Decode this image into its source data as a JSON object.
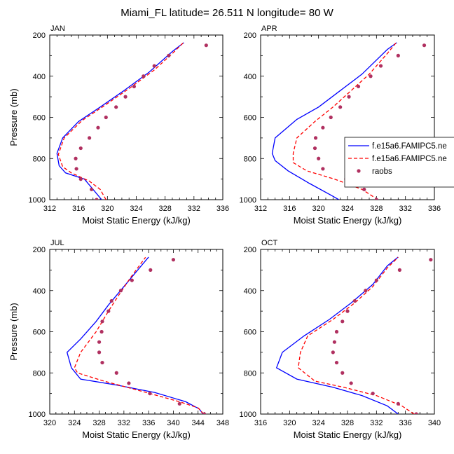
{
  "figure": {
    "title": "Miami_FL  latitude= 26.511 N longitude= 80 W"
  },
  "colors": {
    "model_solid": "#0000ff",
    "model_dashed": "#ff0000",
    "raobs": "#b03060"
  },
  "legend": {
    "items": [
      "f.e15a6.FAMIPC5.ne",
      "f.e15a6.FAMIPC5.ne",
      "raobs"
    ],
    "placement": "right edge of APR panel, clipped by figure"
  },
  "chart_data": [
    {
      "type": "line",
      "panel_label": "JAN",
      "xlabel": "Moist Static Energy (kJ/kg)",
      "ylabel": "Pressure (mb)",
      "xlim": [
        312,
        336
      ],
      "xticks": [
        312,
        316,
        320,
        324,
        328,
        332,
        336
      ],
      "ylim": [
        200,
        1000
      ],
      "yticks": [
        200,
        400,
        600,
        800,
        1000
      ],
      "y_inverted": true,
      "grid": false,
      "series": [
        {
          "style": "solid",
          "points": [
            [
              319.2,
              1000
            ],
            [
              318.0,
              950
            ],
            [
              316.8,
              900
            ],
            [
              314.2,
              870
            ],
            [
              313.3,
              835
            ],
            [
              313.0,
              775
            ],
            [
              313.8,
              700
            ],
            [
              316.0,
              620
            ],
            [
              319.0,
              550
            ],
            [
              322.3,
              470
            ],
            [
              325.8,
              380
            ],
            [
              329.0,
              280
            ],
            [
              330.6,
              237
            ]
          ]
        },
        {
          "style": "dashed",
          "points": [
            [
              319.8,
              1000
            ],
            [
              319.0,
              950
            ],
            [
              317.5,
              910
            ],
            [
              315.0,
              870
            ],
            [
              313.8,
              840
            ],
            [
              313.2,
              780
            ],
            [
              314.0,
              700
            ],
            [
              316.5,
              615
            ],
            [
              319.5,
              545
            ],
            [
              323.0,
              460
            ],
            [
              326.5,
              370
            ],
            [
              329.0,
              290
            ],
            [
              330.5,
              238
            ]
          ]
        },
        {
          "style": "markers",
          "points": [
            [
              318.5,
              1000
            ],
            [
              317.8,
              950
            ],
            [
              316.3,
              900
            ],
            [
              315.7,
              850
            ],
            [
              315.6,
              800
            ],
            [
              316.3,
              750
            ],
            [
              317.5,
              700
            ],
            [
              318.7,
              650
            ],
            [
              319.8,
              600
            ],
            [
              321.2,
              550
            ],
            [
              322.5,
              500
            ],
            [
              323.7,
              450
            ],
            [
              325.0,
              400
            ],
            [
              326.5,
              350
            ],
            [
              328.5,
              300
            ],
            [
              333.7,
              250
            ]
          ]
        }
      ]
    },
    {
      "type": "line",
      "panel_label": "APR",
      "xlabel": "Moist Static Energy (kJ/kg)",
      "ylabel": "",
      "xlim": [
        312,
        336
      ],
      "xticks": [
        312,
        316,
        320,
        324,
        328,
        332,
        336
      ],
      "ylim": [
        200,
        1000
      ],
      "yticks": [
        200,
        400,
        600,
        800,
        1000
      ],
      "y_inverted": true,
      "grid": false,
      "series": [
        {
          "style": "solid",
          "points": [
            [
              322.8,
              1000
            ],
            [
              321.8,
              980
            ],
            [
              318.7,
              920
            ],
            [
              315.8,
              860
            ],
            [
              314.0,
              810
            ],
            [
              313.6,
              775
            ],
            [
              314.0,
              700
            ],
            [
              317.0,
              610
            ],
            [
              320.0,
              550
            ],
            [
              323.0,
              470
            ],
            [
              326.0,
              390
            ],
            [
              329.5,
              270
            ],
            [
              330.8,
              237
            ]
          ]
        },
        {
          "style": "dashed",
          "points": [
            [
              328.2,
              1000
            ],
            [
              326.0,
              950
            ],
            [
              322.2,
              900
            ],
            [
              318.4,
              860
            ],
            [
              316.5,
              820
            ],
            [
              316.5,
              775
            ],
            [
              317.0,
              700
            ],
            [
              319.5,
              620
            ],
            [
              322.0,
              550
            ],
            [
              324.5,
              470
            ],
            [
              327.0,
              390
            ],
            [
              329.5,
              290
            ],
            [
              330.7,
              238
            ]
          ]
        },
        {
          "style": "markers",
          "points": [
            [
              328.0,
              1000
            ],
            [
              326.3,
              950
            ],
            [
              323.8,
              900
            ],
            [
              320.6,
              850
            ],
            [
              320.0,
              800
            ],
            [
              319.5,
              750
            ],
            [
              319.6,
              700
            ],
            [
              320.6,
              650
            ],
            [
              321.7,
              600
            ],
            [
              323.0,
              550
            ],
            [
              324.2,
              500
            ],
            [
              325.5,
              450
            ],
            [
              327.2,
              400
            ],
            [
              328.6,
              350
            ],
            [
              331.0,
              300
            ],
            [
              334.6,
              250
            ]
          ]
        }
      ]
    },
    {
      "type": "line",
      "panel_label": "JUL",
      "xlabel": "Moist Static Energy (kJ/kg)",
      "ylabel": "Pressure (mb)",
      "xlim": [
        320,
        348
      ],
      "xticks": [
        320,
        324,
        328,
        332,
        336,
        340,
        344,
        348
      ],
      "ylim": [
        200,
        1000
      ],
      "yticks": [
        200,
        400,
        600,
        800,
        1000
      ],
      "y_inverted": true,
      "grid": false,
      "series": [
        {
          "style": "solid",
          "points": [
            [
              344.8,
              1000
            ],
            [
              344.2,
              975
            ],
            [
              342.0,
              940
            ],
            [
              337.0,
              895
            ],
            [
              331.0,
              860
            ],
            [
              325.0,
              830
            ],
            [
              323.5,
              775
            ],
            [
              322.8,
              700
            ],
            [
              325.0,
              635
            ],
            [
              327.5,
              550
            ],
            [
              329.5,
              470
            ],
            [
              332.0,
              380
            ],
            [
              336.0,
              237
            ]
          ]
        },
        {
          "style": "dashed",
          "points": [
            [
              344.9,
              1000
            ],
            [
              344.0,
              970
            ],
            [
              341.0,
              940
            ],
            [
              335.0,
              890
            ],
            [
              328.8,
              840
            ],
            [
              324.5,
              800
            ],
            [
              324.0,
              775
            ],
            [
              325.0,
              700
            ],
            [
              327.5,
              600
            ],
            [
              329.5,
              500
            ],
            [
              331.0,
              430
            ],
            [
              333.0,
              340
            ],
            [
              335.5,
              238
            ]
          ]
        },
        {
          "style": "markers",
          "points": [
            [
              345.0,
              1000
            ],
            [
              341.0,
              950
            ],
            [
              336.2,
              900
            ],
            [
              332.8,
              850
            ],
            [
              330.8,
              800
            ],
            [
              328.5,
              750
            ],
            [
              328.0,
              700
            ],
            [
              328.0,
              650
            ],
            [
              328.4,
              600
            ],
            [
              328.5,
              550
            ],
            [
              329.5,
              500
            ],
            [
              330.0,
              450
            ],
            [
              331.5,
              400
            ],
            [
              333.3,
              350
            ],
            [
              336.3,
              300
            ],
            [
              340.0,
              250
            ]
          ]
        }
      ]
    },
    {
      "type": "line",
      "panel_label": "OCT",
      "xlabel": "Moist Static Energy (kJ/kg)",
      "ylabel": "",
      "xlim": [
        316,
        340
      ],
      "xticks": [
        316,
        320,
        324,
        328,
        332,
        336,
        340
      ],
      "ylim": [
        200,
        1000
      ],
      "yticks": [
        200,
        400,
        600,
        800,
        1000
      ],
      "y_inverted": true,
      "grid": false,
      "series": [
        {
          "style": "solid",
          "points": [
            [
              335.0,
              1000
            ],
            [
              333.5,
              960
            ],
            [
              330.0,
              910
            ],
            [
              326.0,
              870
            ],
            [
              321.0,
              830
            ],
            [
              318.2,
              775
            ],
            [
              319.0,
              700
            ],
            [
              322.0,
              620
            ],
            [
              325.5,
              540
            ],
            [
              328.5,
              460
            ],
            [
              331.5,
              370
            ],
            [
              333.5,
              280
            ],
            [
              335.0,
              237
            ]
          ]
        },
        {
          "style": "dashed",
          "points": [
            [
              337.2,
              1000
            ],
            [
              335.5,
              960
            ],
            [
              332.0,
              910
            ],
            [
              327.5,
              870
            ],
            [
              323.5,
              840
            ],
            [
              321.2,
              775
            ],
            [
              321.5,
              700
            ],
            [
              322.5,
              620
            ],
            [
              326.0,
              540
            ],
            [
              329.0,
              460
            ],
            [
              331.5,
              380
            ],
            [
              333.5,
              290
            ],
            [
              335.0,
              238
            ]
          ]
        },
        {
          "style": "markers",
          "points": [
            [
              337.5,
              1000
            ],
            [
              335.0,
              950
            ],
            [
              331.5,
              900
            ],
            [
              328.5,
              850
            ],
            [
              327.3,
              800
            ],
            [
              326.5,
              750
            ],
            [
              326.0,
              700
            ],
            [
              326.2,
              650
            ],
            [
              326.5,
              600
            ],
            [
              327.3,
              550
            ],
            [
              328.0,
              500
            ],
            [
              329.0,
              450
            ],
            [
              330.5,
              400
            ],
            [
              332.0,
              350
            ],
            [
              335.2,
              300
            ],
            [
              339.5,
              250
            ]
          ]
        }
      ]
    }
  ]
}
